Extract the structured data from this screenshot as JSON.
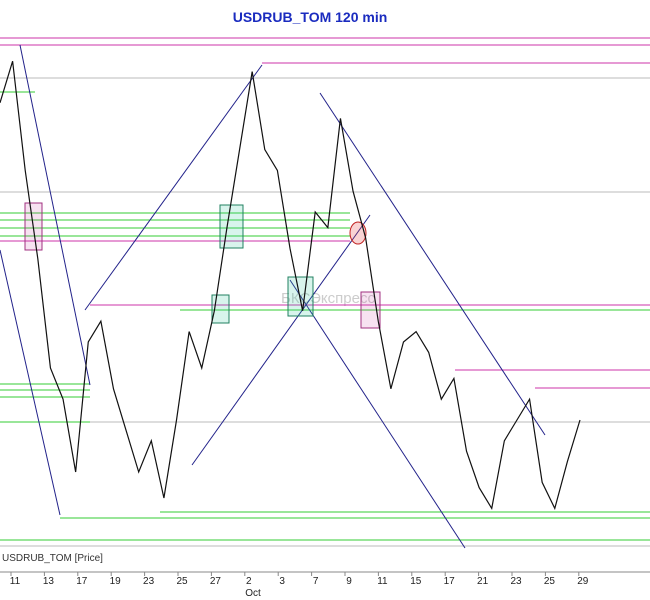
{
  "chart_data": {
    "type": "line",
    "title": "USDRUB_TOM 120 min",
    "series_label": "USDRUB_TOM [Price]",
    "watermark": "БКСЭкспресс",
    "color": "#111111",
    "values": [
      86,
      94,
      73,
      56,
      35,
      29,
      15,
      40,
      44,
      31,
      23,
      15,
      21,
      10,
      25,
      42,
      35,
      46,
      62,
      77,
      92,
      77,
      73,
      58,
      46,
      65,
      62,
      83,
      69,
      60,
      44,
      31,
      40,
      42,
      38,
      29,
      33,
      19,
      12,
      8,
      21,
      25,
      29,
      13,
      8,
      17,
      25
    ],
    "ylim": [
      0,
      100
    ],
    "xtick_labels": [
      "11",
      "13",
      "17",
      "19",
      "23",
      "25",
      "27",
      "2",
      "3",
      "7",
      "9",
      "11",
      "15",
      "17",
      "21",
      "23",
      "25",
      "29"
    ],
    "month_label": "Oct"
  }
}
